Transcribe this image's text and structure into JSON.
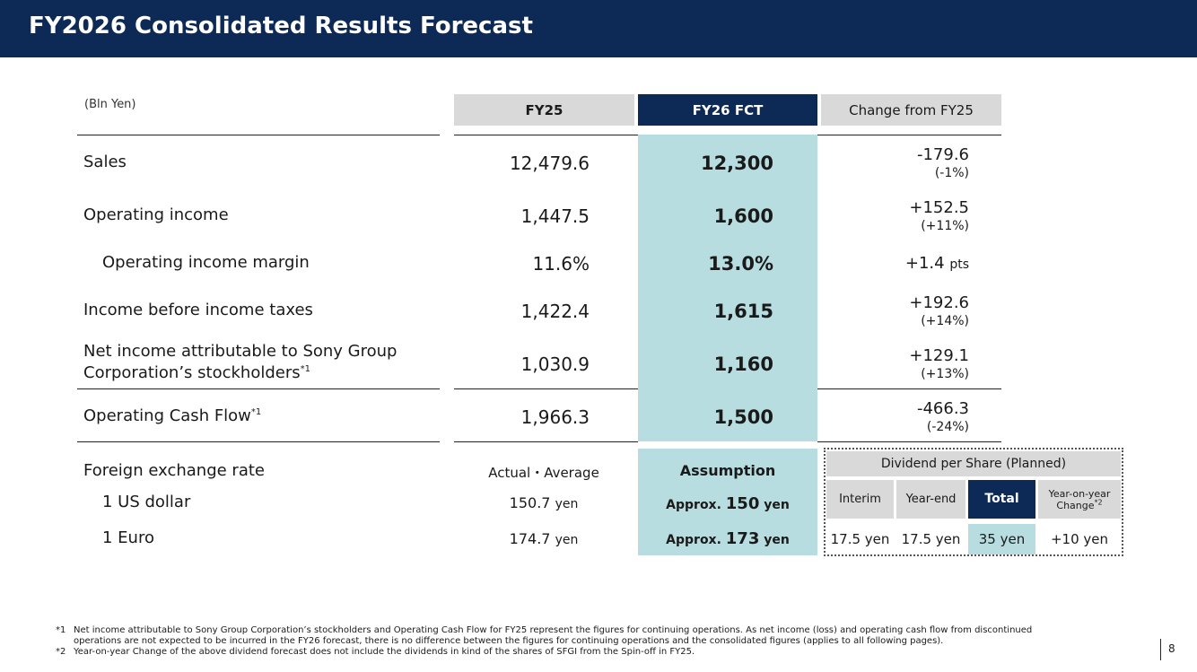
{
  "header": {
    "title": "FY2026 Consolidated Results Forecast"
  },
  "unit_label": "(Bln Yen)",
  "columns": {
    "fy25": "FY25",
    "fy26": "FY26 FCT",
    "change": "Change from FY25"
  },
  "rows": [
    {
      "label": "Sales",
      "fy25": "12,479.6",
      "fy26": "12,300",
      "change": "-179.6",
      "pct": "(-1%)"
    },
    {
      "label": "Operating income",
      "fy25": "1,447.5",
      "fy26": "1,600",
      "change": "+152.5",
      "pct": "(+11%)"
    },
    {
      "label": "Operating income margin",
      "fy25": "11.6%",
      "fy26": "13.0%",
      "change": "+1.4",
      "change_unit": "pts"
    },
    {
      "label": "Income before income taxes",
      "fy25": "1,422.4",
      "fy26": "1,615",
      "change": "+192.6",
      "pct": "(+14%)"
    },
    {
      "label_line1": "Net income attributable to Sony Group",
      "label_line2": "Corporation’s stockholders",
      "note": "*1",
      "fy25": "1,030.9",
      "fy26": "1,160",
      "change": "+129.1",
      "pct": "(+13%)"
    },
    {
      "label": "Operating Cash Flow",
      "note": "*1",
      "fy25": "1,966.3",
      "fy26": "1,500",
      "change": "-466.3",
      "pct": "(-24%)"
    }
  ],
  "fx": {
    "label": "Foreign exchange rate",
    "actual_head": "Actual・Average",
    "assumption_head": "Assumption",
    "items": [
      {
        "label": "1 US dollar",
        "actual": "150.7",
        "unit": "yen",
        "approx": "Approx.",
        "assumption": "150",
        "assumption_unit": "yen"
      },
      {
        "label": "1 Euro",
        "actual": "174.7",
        "unit": "yen",
        "approx": "Approx.",
        "assumption": "173",
        "assumption_unit": "yen"
      }
    ]
  },
  "dividend": {
    "title": "Dividend per Share (Planned)",
    "heads": {
      "interim": "Interim",
      "year_end": "Year-end",
      "total": "Total",
      "yoy_line1": "Year-on-year",
      "yoy_line2": "Change",
      "yoy_note": "*2"
    },
    "values": {
      "interim": "17.5 yen",
      "year_end": "17.5 yen",
      "total": "35 yen",
      "yoy": "+10 yen"
    }
  },
  "footnotes": [
    {
      "mark": "*1",
      "line1": "Net income attributable to Sony Group Corporation’s stockholders and Operating Cash Flow for FY25 represent the figures for continuing operations. As net income (loss) and operating cash flow from discontinued",
      "line2": "operations are not expected to be incurred in the FY26 forecast, there is no difference between the figures for continuing operations and the consolidated figures (applies to all following pages)."
    },
    {
      "mark": "*2",
      "line1": "Year-on-year Change of the above dividend forecast does not include the dividends in kind of the shares of SFGI from the Spin-off in FY25."
    }
  ],
  "page_number": "8",
  "colors": {
    "navy": "#0c2a55",
    "teal": "#b7dde1",
    "gray": "#d9d9d9"
  }
}
